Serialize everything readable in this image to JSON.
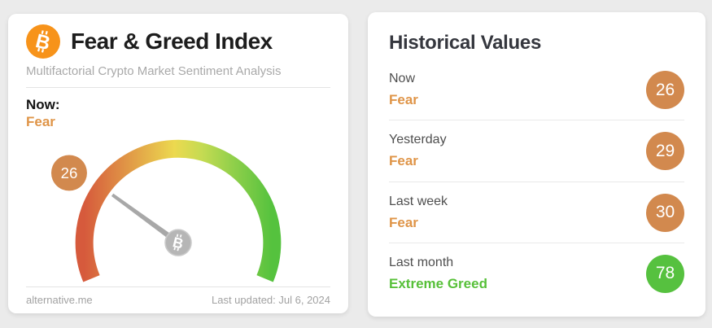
{
  "colors": {
    "page_background": "#ebebeb",
    "card_background": "#ffffff",
    "bitcoin_orange": "#f7931a",
    "fear_text": "#df9447",
    "greed_text": "#57c039",
    "badge_fear": "#d2894e",
    "badge_greed": "#56c13f",
    "needle_gray": "#a8a8a8",
    "gauge_gradient": [
      "#d65a3c",
      "#df8f45",
      "#ecd94f",
      "#8ecf4a",
      "#55c23e"
    ]
  },
  "fear_greed_card": {
    "title": "Fear & Greed Index",
    "subtitle": "Multifactorial Crypto Market Sentiment Analysis",
    "now_label": "Now:",
    "now_classification": "Fear",
    "source_link": "alternative.me",
    "last_updated": "Last updated: Jul 6, 2024"
  },
  "gauge": {
    "value": 26,
    "min": 0,
    "max": 100,
    "start_angle_deg": 202.5,
    "sweep_deg": 225
  },
  "historical": {
    "title": "Historical Values",
    "rows": [
      {
        "label": "Now",
        "classification": "Fear",
        "value": 26,
        "sentiment": "fear"
      },
      {
        "label": "Yesterday",
        "classification": "Fear",
        "value": 29,
        "sentiment": "fear"
      },
      {
        "label": "Last week",
        "classification": "Fear",
        "value": 30,
        "sentiment": "fear"
      },
      {
        "label": "Last month",
        "classification": "Extreme Greed",
        "value": 78,
        "sentiment": "greed"
      }
    ]
  },
  "icons": {
    "bitcoin_glyph": "B"
  },
  "chart_data": {
    "type": "gauge",
    "title": "Fear & Greed Index",
    "subtitle": "Multifactorial Crypto Market Sentiment Analysis",
    "range": [
      0,
      100
    ],
    "current": {
      "label": "Now",
      "value": 26,
      "classification": "Fear"
    },
    "historical": [
      {
        "label": "Now",
        "value": 26,
        "classification": "Fear"
      },
      {
        "label": "Yesterday",
        "value": 29,
        "classification": "Fear"
      },
      {
        "label": "Last week",
        "value": 30,
        "classification": "Fear"
      },
      {
        "label": "Last month",
        "value": 78,
        "classification": "Extreme Greed"
      }
    ],
    "color_scale_left_to_right": [
      "#d65a3c",
      "#ecd94f",
      "#55c23e"
    ],
    "legend_position": "none",
    "last_updated": "Jul 6, 2024",
    "source": "alternative.me"
  }
}
